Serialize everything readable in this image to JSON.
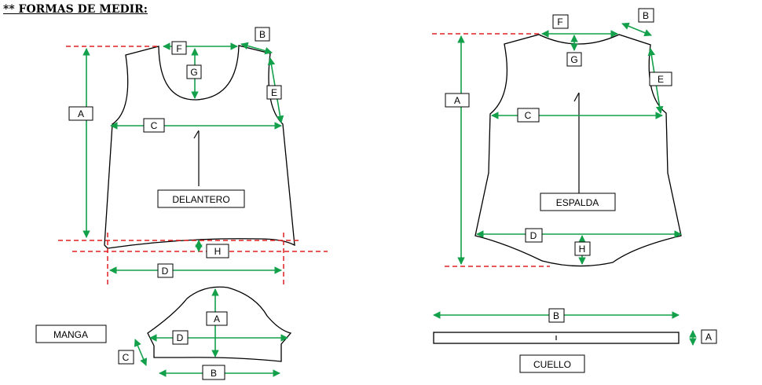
{
  "title": "** FORMAS DE MEDIR:",
  "colors": {
    "measure": "#13a04a",
    "guide": "#e02020",
    "outline": "#000000"
  },
  "front": {
    "label": "DELANTERO",
    "letters": {
      "a": "A",
      "b": "B",
      "c": "C",
      "d": "D",
      "e": "E",
      "f": "F",
      "g": "G",
      "h": "H"
    }
  },
  "back": {
    "label": "ESPALDA",
    "letters": {
      "a": "A",
      "b": "B",
      "c": "C",
      "d": "D",
      "e": "E",
      "f": "F",
      "g": "G",
      "h": "H"
    }
  },
  "sleeve": {
    "label": "MANGA",
    "letters": {
      "a": "A",
      "b": "B",
      "c": "C",
      "d": "D"
    }
  },
  "collar": {
    "label": "CUELLO",
    "letters": {
      "a": "A",
      "b": "B"
    }
  }
}
